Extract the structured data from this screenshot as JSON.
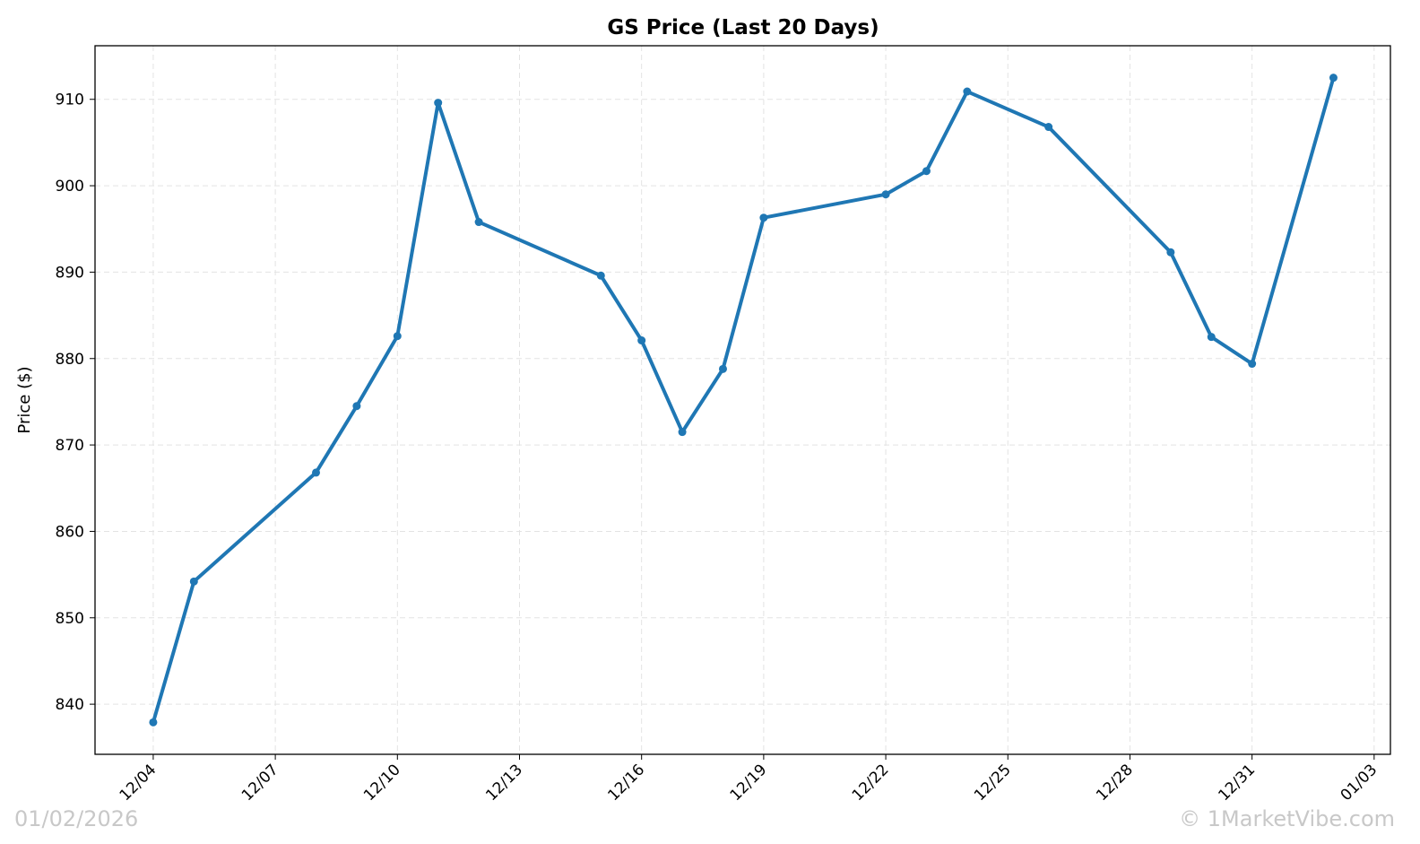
{
  "chart_data": {
    "type": "line",
    "title": "GS Price (Last 20 Days)",
    "y_label": "Price ($)",
    "x": [
      "12/04",
      "12/05",
      "12/08",
      "12/09",
      "12/10",
      "12/11",
      "12/12",
      "12/15",
      "12/16",
      "12/17",
      "12/18",
      "12/19",
      "12/22",
      "12/23",
      "12/24",
      "12/26",
      "12/29",
      "12/30",
      "12/31",
      "01/02"
    ],
    "series": [
      {
        "name": "GS",
        "color": "#1f77b4",
        "values": [
          837.9,
          854.2,
          866.8,
          874.5,
          882.6,
          909.6,
          895.8,
          889.6,
          882.1,
          871.5,
          878.8,
          896.3,
          899.0,
          901.7,
          910.9,
          906.8,
          892.3,
          882.5,
          879.4,
          912.5
        ]
      }
    ],
    "ylim": [
      834.2,
      916.2
    ],
    "yticks": [
      840,
      850,
      860,
      870,
      880,
      890,
      900,
      910
    ],
    "xticks": [
      "12/04",
      "12/07",
      "12/10",
      "12/13",
      "12/16",
      "12/19",
      "12/22",
      "12/25",
      "12/28",
      "12/31",
      "01/03"
    ],
    "grid": true,
    "watermark_date": "01/02/2026",
    "watermark_site": "© 1MarketVibe.com"
  }
}
